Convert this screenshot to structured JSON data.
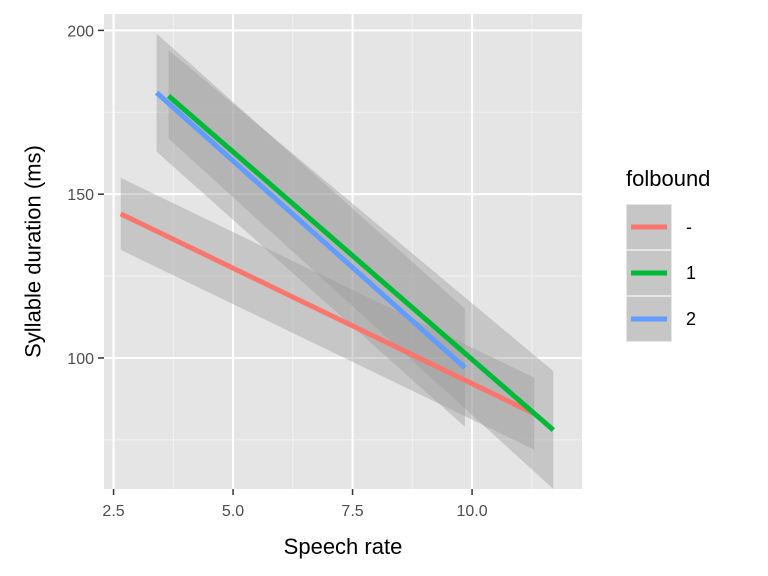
{
  "chart_data": {
    "type": "line",
    "title": "",
    "xlabel": "Speech rate",
    "ylabel": "Syllable duration (ms)",
    "xlim": [
      2.3,
      12.3
    ],
    "ylim": [
      60,
      205
    ],
    "x_ticks": [
      2.5,
      5.0,
      7.5,
      10.0
    ],
    "x_tick_labels": [
      "2.5",
      "5.0",
      "7.5",
      "10.0"
    ],
    "y_ticks": [
      100,
      150,
      200
    ],
    "y_tick_labels": [
      "100",
      "150",
      "200"
    ],
    "grid": true,
    "panel_background": "#e5e5e5",
    "legend": {
      "title": "folbound",
      "placement": "right"
    },
    "series": [
      {
        "name": "-",
        "color": "#f8766d",
        "x": [
          2.65,
          11.3
        ],
        "y": [
          144,
          83
        ],
        "ribbon_lower": [
          133,
          72
        ],
        "ribbon_upper": [
          155,
          94
        ]
      },
      {
        "name": "1",
        "color": "#00ba38",
        "x": [
          3.65,
          11.7
        ],
        "y": [
          180,
          78
        ],
        "ribbon_lower": [
          167,
          60
        ],
        "ribbon_upper": [
          194,
          96
        ]
      },
      {
        "name": "2",
        "color": "#619cff",
        "x": [
          3.4,
          9.85
        ],
        "y": [
          181,
          97
        ],
        "ribbon_lower": [
          163,
          79
        ],
        "ribbon_upper": [
          199,
          115
        ]
      }
    ]
  }
}
